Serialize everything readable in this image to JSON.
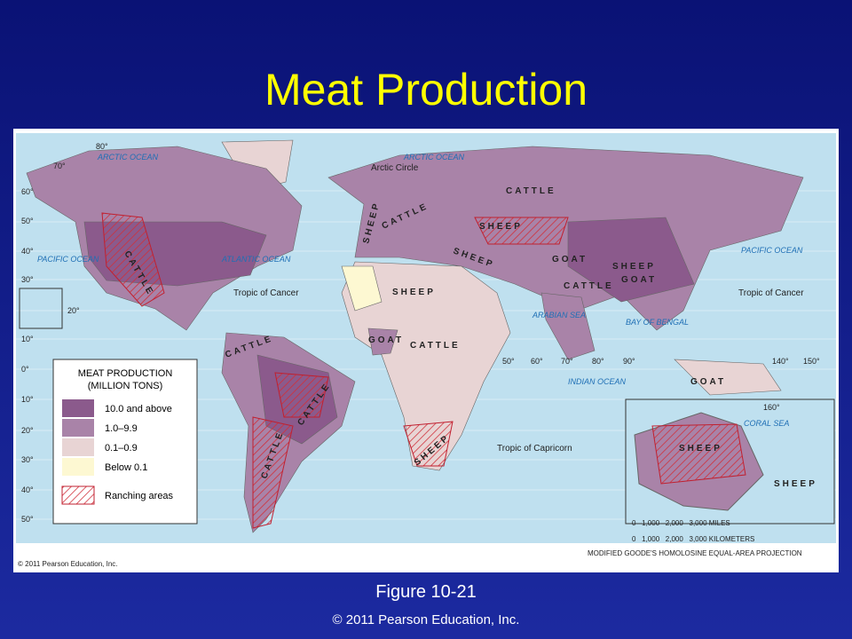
{
  "header": {
    "title": "Meat Production"
  },
  "map": {
    "legend": {
      "title": "MEAT PRODUCTION",
      "subtitle": "(MILLION TONS)",
      "items": [
        "10.0 and above",
        "1.0–9.9",
        "0.1–0.9",
        "Below 0.1",
        "Ranching areas"
      ]
    },
    "oceans": [
      "ARCTIC OCEAN",
      "ARCTIC OCEAN",
      "PACIFIC OCEAN",
      "ATLANTIC OCEAN",
      "PACIFIC OCEAN",
      "INDIAN OCEAN",
      "ARABIAN SEA",
      "BAY OF BENGAL",
      "CORAL SEA"
    ],
    "lines": [
      "Arctic Circle",
      "Tropic of Cancer",
      "Tropic of Cancer",
      "Tropic of Capricorn"
    ],
    "labels": [
      "CATTLE",
      "CATTLE",
      "CATTLE",
      "CATTLE",
      "SHEEP",
      "CATTLE",
      "SHEEP",
      "SHEEP",
      "GOAT",
      "CATTLE",
      "SHEEP",
      "GOAT",
      "CATTLE",
      "SHEEP",
      "GOAT",
      "CATTLE",
      "SHEEP",
      "GOAT",
      "SHEEP",
      "SHEEP"
    ],
    "degree_labels": [
      "80°",
      "70°",
      "60°",
      "50°",
      "40°",
      "30°",
      "20°",
      "10°",
      "0°",
      "10°",
      "20°",
      "30°",
      "40°",
      "50°",
      "50°",
      "60°",
      "70°",
      "80°",
      "90°",
      "140°",
      "150°",
      "160°"
    ],
    "scale": {
      "miles": "0   1,000   2,000   3,000 MILES",
      "kilometers": "0   1,000   2,000   3,000 KILOMETERS"
    },
    "projection": "MODIFIED GOODE'S HOMOLOSINE EQUAL-AREA PROJECTION",
    "credit": "© 2011 Pearson Education, Inc."
  },
  "footer": {
    "figure": "Figure 10-21",
    "copyright": "© 2011 Pearson Education, Inc."
  }
}
